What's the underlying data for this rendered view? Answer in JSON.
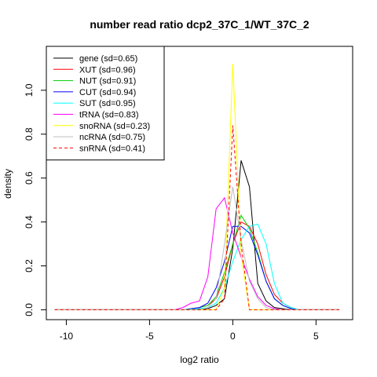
{
  "chart_data": {
    "type": "line",
    "title": "number read ratio dcp2_37C_1/WT_37C_2",
    "xlabel": "log2 ratio",
    "ylabel": "density",
    "xlim": [
      -11.2,
      7.2
    ],
    "ylim": [
      -0.045,
      1.2
    ],
    "xticks": [
      -10,
      -5,
      0,
      5
    ],
    "yticks": [
      0.0,
      0.2,
      0.4,
      0.6,
      0.8,
      1.0
    ],
    "legend_position": "top-left",
    "grid": false,
    "series": [
      {
        "name": "gene (sd=0.65)",
        "color": "#000000",
        "dash": false,
        "x": [
          -10.7,
          -3.5,
          -2.5,
          -1.5,
          -1.0,
          -0.5,
          0.0,
          0.5,
          1.0,
          1.5,
          2.0,
          2.5,
          3.0,
          3.5,
          6.4
        ],
        "y": [
          0,
          0,
          0,
          0.005,
          0.02,
          0.05,
          0.28,
          0.68,
          0.56,
          0.12,
          0.04,
          0.01,
          0.005,
          0,
          0
        ]
      },
      {
        "name": "XUT (sd=0.96)",
        "color": "#ff0000",
        "dash": false,
        "x": [
          -10.7,
          -3.0,
          -2.0,
          -1.5,
          -1.0,
          -0.5,
          0.0,
          0.5,
          1.0,
          1.5,
          2.0,
          2.5,
          3.0,
          3.5,
          4.0,
          6.4
        ],
        "y": [
          0,
          0,
          0.01,
          0.02,
          0.05,
          0.15,
          0.3,
          0.4,
          0.38,
          0.3,
          0.16,
          0.07,
          0.03,
          0.01,
          0,
          0
        ]
      },
      {
        "name": "NUT (sd=0.91)",
        "color": "#00cd00",
        "dash": false,
        "x": [
          -10.7,
          -3.0,
          -2.0,
          -1.5,
          -1.0,
          -0.5,
          0.0,
          0.5,
          1.0,
          1.5,
          2.0,
          2.5,
          3.0,
          3.5,
          4.0,
          6.4
        ],
        "y": [
          0,
          0,
          0.01,
          0.02,
          0.06,
          0.17,
          0.3,
          0.43,
          0.37,
          0.26,
          0.13,
          0.05,
          0.02,
          0.005,
          0,
          0
        ]
      },
      {
        "name": "CUT (sd=0.94)",
        "color": "#0000ff",
        "dash": false,
        "x": [
          -10.7,
          -3.0,
          -2.0,
          -1.5,
          -1.0,
          -0.5,
          0.0,
          0.5,
          1.0,
          1.5,
          2.0,
          2.5,
          3.0,
          3.5,
          4.0,
          6.4
        ],
        "y": [
          0,
          0,
          0.01,
          0.03,
          0.1,
          0.22,
          0.38,
          0.38,
          0.35,
          0.25,
          0.13,
          0.05,
          0.02,
          0.005,
          0,
          0
        ]
      },
      {
        "name": "SUT (sd=0.95)",
        "color": "#00ffff",
        "dash": false,
        "x": [
          -10.7,
          -3.0,
          -2.0,
          -1.5,
          -1.0,
          -0.5,
          0.0,
          0.5,
          1.0,
          1.5,
          2.0,
          2.5,
          3.0,
          3.5,
          4.0,
          6.4
        ],
        "y": [
          0,
          0,
          0.005,
          0.01,
          0.03,
          0.1,
          0.22,
          0.32,
          0.38,
          0.39,
          0.3,
          0.12,
          0.03,
          0.01,
          0,
          0
        ]
      },
      {
        "name": "tRNA (sd=0.83)",
        "color": "#ff00ff",
        "dash": false,
        "x": [
          -10.7,
          -3.5,
          -3.0,
          -2.5,
          -2.0,
          -1.5,
          -1.0,
          -0.5,
          0.0,
          0.5,
          1.0,
          1.5,
          2.0,
          2.5,
          3.0,
          6.4
        ],
        "y": [
          0,
          0,
          0.01,
          0.03,
          0.04,
          0.15,
          0.46,
          0.51,
          0.35,
          0.24,
          0.14,
          0.06,
          0.02,
          0.005,
          0,
          0
        ]
      },
      {
        "name": "snoRNA (sd=0.23)",
        "color": "#ffff00",
        "dash": false,
        "x": [
          -10.7,
          -1.0,
          -0.5,
          0.0,
          0.5,
          1.0,
          6.4
        ],
        "y": [
          0,
          0,
          0.1,
          1.12,
          0.25,
          0,
          0
        ]
      },
      {
        "name": "ncRNA (sd=0.75)",
        "color": "#bebebe",
        "dash": false,
        "x": [
          -10.7,
          -2.0,
          -1.5,
          -1.0,
          -0.5,
          0.0,
          0.5,
          1.0,
          1.5,
          2.0,
          2.5,
          6.4
        ],
        "y": [
          0,
          0,
          0.01,
          0.05,
          0.3,
          0.56,
          0.32,
          0.13,
          0.05,
          0.01,
          0,
          0
        ]
      },
      {
        "name": "snRNA (sd=0.41)",
        "color": "#ff0000",
        "dash": true,
        "x": [
          -10.7,
          -1.0,
          -0.5,
          0.0,
          0.5,
          1.0,
          6.4
        ],
        "y": [
          0,
          0,
          0.05,
          0.84,
          0.3,
          0,
          0
        ]
      }
    ]
  }
}
